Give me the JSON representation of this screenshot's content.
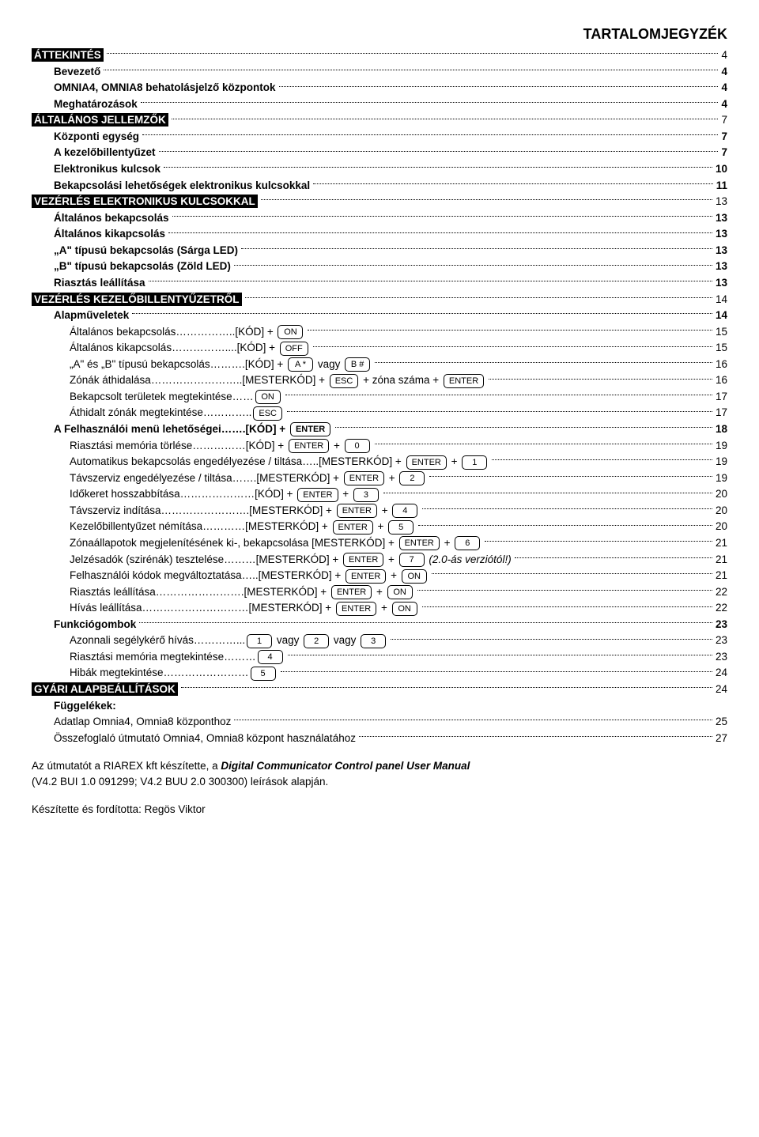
{
  "title": "TARTALOMJEGYZÉK",
  "s1": {
    "h": "ÁTTEKINTÉS",
    "p": "4",
    "i": [
      {
        "l": "Bevezető",
        "p": "4"
      },
      {
        "l": "OMNIA4, OMNIA8 behatolásjelző központok",
        "p": "4"
      },
      {
        "l": "Meghatározások",
        "p": "4"
      }
    ]
  },
  "s2": {
    "h": "ÁLTALÁNOS JELLEMZŐK",
    "p": "7",
    "i": [
      {
        "l": "Központi egység",
        "p": "7"
      },
      {
        "l": "A kezelőbillentyűzet",
        "p": "7"
      },
      {
        "l": "Elektronikus kulcsok",
        "p": "10"
      },
      {
        "l": "Bekapcsolási lehetőségek elektronikus kulcsokkal",
        "p": "11"
      }
    ]
  },
  "s3": {
    "h": "VEZÉRLÉS ELEKTRONIKUS KULCSOKKAL",
    "p": "13",
    "i": [
      {
        "l": "Általános bekapcsolás",
        "p": "13"
      },
      {
        "l": "Általános kikapcsolás",
        "p": "13"
      },
      {
        "l": "„A\" típusú bekapcsolás (Sárga LED)",
        "p": "13"
      },
      {
        "l": "„B\" típusú bekapcsolás (Zöld LED)",
        "p": "13"
      },
      {
        "l": "Riasztás leállítása",
        "p": "13"
      }
    ]
  },
  "s4": {
    "h": "VEZÉRLÉS KEZELŐBILLENTYŰZETRŐL",
    "p": "14",
    "alap": {
      "l": "Alapműveletek",
      "p": "14"
    },
    "i": [
      {
        "l": "Általános bekapcsolás……………..[KÓD] + ",
        "k": [
          "ON"
        ],
        "p": "15"
      },
      {
        "l": "Általános kikapcsolás……………....[KÓD] + ",
        "k": [
          "OFF"
        ],
        "p": "15"
      },
      {
        "l": "„A\" és „B\" típusú bekapcsolás……….[KÓD] + ",
        "k": [
          "A *"
        ],
        "mid": " vagy ",
        "k2": [
          "B #"
        ],
        "p": "16"
      },
      {
        "l": "Zónák áthidalása……………………..[MESTERKÓD] + ",
        "k": [
          "ESC"
        ],
        "mid": " + zóna száma + ",
        "k2": [
          "ENTER"
        ],
        "p": "16",
        "dotstyle": ".."
      },
      {
        "l": "Bekapcsolt területek megtekintése……",
        "k": [
          "ON"
        ],
        "p": "17"
      },
      {
        "l": "Áthidalt zónák megtekintése…………..",
        "k": [
          "ESC"
        ],
        "p": "17"
      }
    ],
    "felh": {
      "l": "A Felhasználói menü lehetőségei…….[KÓD] + ",
      "k": [
        "ENTER"
      ],
      "p": "18"
    },
    "i2": [
      {
        "l": "Riasztási memória törlése……………[KÓD] + ",
        "k": [
          "ENTER"
        ],
        "mid": " + ",
        "k2": [
          "0"
        ],
        "p": "19"
      },
      {
        "l": "Automatikus bekapcsolás engedélyezése / tiltása…..[MESTERKÓD] + ",
        "k": [
          "ENTER"
        ],
        "mid": " + ",
        "k2": [
          "1"
        ],
        "p": "19"
      },
      {
        "l": "Távszerviz engedélyezése / tiltása…….[MESTERKÓD] + ",
        "k": [
          "ENTER"
        ],
        "mid": " + ",
        "k2": [
          "2"
        ],
        "p": "19"
      },
      {
        "l": "Időkeret hosszabbítása…………………[KÓD] + ",
        "k": [
          "ENTER"
        ],
        "mid": " + ",
        "k2": [
          "3"
        ],
        "p": "20"
      },
      {
        "l": "Távszerviz indítása…………………….[MESTERKÓD] + ",
        "k": [
          "ENTER"
        ],
        "mid": " + ",
        "k2": [
          "4"
        ],
        "p": "20"
      },
      {
        "l": "Kezelőbillentyűzet némítása…………[MESTERKÓD] + ",
        "k": [
          "ENTER"
        ],
        "mid": " + ",
        "k2": [
          "5"
        ],
        "p": "20"
      },
      {
        "l": "Zónaállapotok megjelenítésének ki-, bekapcsolása [MESTERKÓD] + ",
        "k": [
          "ENTER"
        ],
        "mid": " + ",
        "k2": [
          "6"
        ],
        "p": "21"
      },
      {
        "l": "Jelzésadók (szirénák) tesztelése………[MESTERKÓD] + ",
        "k": [
          "ENTER"
        ],
        "mid": " + ",
        "k2": [
          "7"
        ],
        "tail": " (2.0-ás verziótól!)",
        "p": "21",
        "italic": true
      },
      {
        "l": "Felhasználói kódok megváltoztatása…..[MESTERKÓD] + ",
        "k": [
          "ENTER"
        ],
        "mid": " + ",
        "k2": [
          "ON"
        ],
        "p": "21"
      },
      {
        "l": "Riasztás leállítása…………………….[MESTERKÓD] + ",
        "k": [
          "ENTER"
        ],
        "mid": " + ",
        "k2": [
          "ON"
        ],
        "p": "22"
      },
      {
        "l": "Hívás leállítása…………………………[MESTERKÓD] + ",
        "k": [
          "ENTER"
        ],
        "mid": " + ",
        "k2": [
          "ON"
        ],
        "p": "22"
      }
    ],
    "funk": {
      "l": "Funkciógombok",
      "p": "23"
    },
    "i3": [
      {
        "l": "Azonnali segélykérő hívás…………...",
        "k": [
          "1"
        ],
        "mid": " vagy ",
        "k2": [
          "2"
        ],
        "mid2": " vagy ",
        "k3": [
          "3"
        ],
        "p": "23"
      },
      {
        "l": "Riasztási memória megtekintése………",
        "k": [
          "4"
        ],
        "p": "23"
      },
      {
        "l": "Hibák megtekintése……………………",
        "k": [
          "5"
        ],
        "p": "24"
      }
    ]
  },
  "s5": {
    "h": "GYÁRI ALAPBEÁLLÍTÁSOK",
    "p": "24"
  },
  "fugg": {
    "h": "Függelékek:",
    "i": [
      {
        "l": "Adatlap Omnia4, Omnia8 központhoz",
        "p": "25"
      },
      {
        "l": "Összefoglaló útmutató Omnia4, Omnia8 központ használatához",
        "p": "27"
      }
    ]
  },
  "footer1": "Az útmutatót a RIAREX kft készítette, a ",
  "footer1i": "Digital Communicator Control panel User Manual",
  "footer2": "(V4.2 BUI 1.0 091299; V4.2 BUU 2.0 300300) leírások alapján.",
  "footer3": "Készítette és fordította: Regös Viktor"
}
